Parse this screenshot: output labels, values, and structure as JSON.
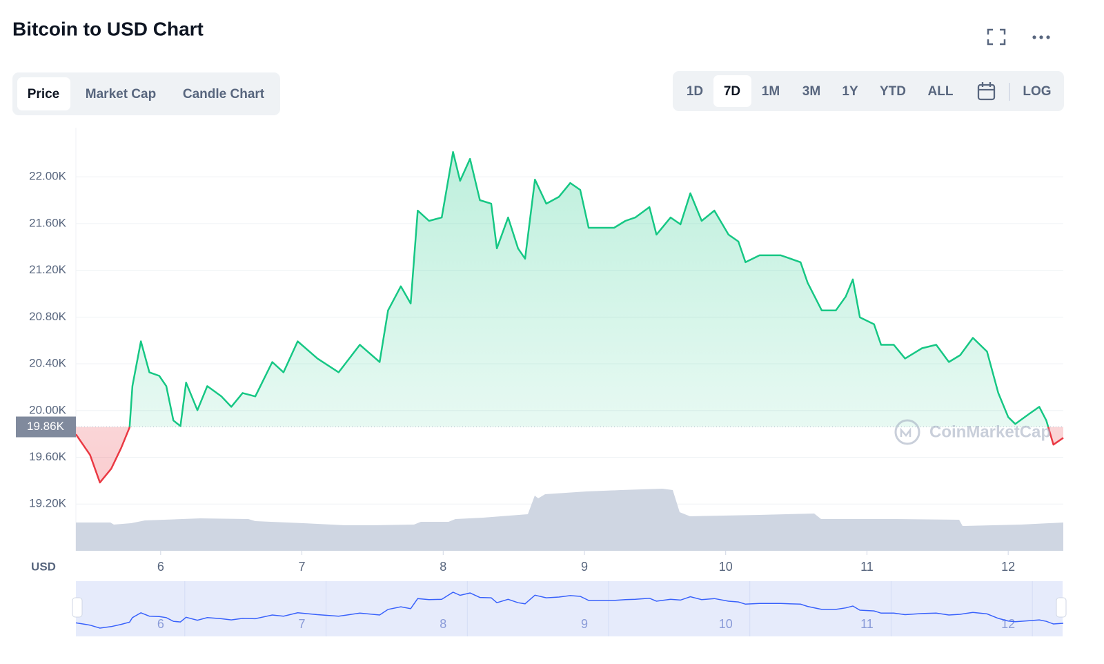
{
  "chart_data": {
    "type": "line",
    "title": "Bitcoin to USD Chart",
    "unit_label": "USD",
    "x": [
      5.4,
      5.5,
      5.57,
      5.65,
      5.72,
      5.78,
      5.8,
      5.86,
      5.92,
      5.99,
      6.04,
      6.09,
      6.14,
      6.18,
      6.26,
      6.33,
      6.43,
      6.5,
      6.58,
      6.67,
      6.79,
      6.87,
      6.97,
      7.11,
      7.26,
      7.41,
      7.55,
      7.61,
      7.7,
      7.77,
      7.82,
      7.9,
      7.99,
      8.07,
      8.12,
      8.19,
      8.26,
      8.34,
      8.38,
      8.46,
      8.53,
      8.58,
      8.65,
      8.73,
      8.82,
      8.9,
      8.97,
      9.03,
      9.12,
      9.21,
      9.29,
      9.36,
      9.46,
      9.51,
      9.61,
      9.68,
      9.75,
      9.83,
      9.92,
      10.02,
      10.09,
      10.14,
      10.24,
      10.39,
      10.53,
      10.58,
      10.68,
      10.78,
      10.85,
      10.9,
      10.95,
      11.05,
      11.1,
      11.19,
      11.27,
      11.39,
      11.49,
      11.58,
      11.66,
      11.75,
      11.85,
      11.93,
      12.0,
      12.05,
      12.15,
      12.22,
      12.27,
      12.32,
      12.39
    ],
    "series": [
      {
        "name": "Price",
        "color": "#16c784",
        "below_color": "#ea3943",
        "values": [
          19797,
          19620,
          19384,
          19502,
          19679,
          19856,
          20209,
          20592,
          20327,
          20297,
          20209,
          19915,
          19867,
          20239,
          20003,
          20209,
          20121,
          20032,
          20150,
          20121,
          20415,
          20327,
          20592,
          20445,
          20327,
          20563,
          20415,
          20857,
          21063,
          20916,
          21711,
          21623,
          21652,
          22212,
          21965,
          22153,
          21800,
          21770,
          21387,
          21652,
          21387,
          21299,
          21976,
          21770,
          21829,
          21947,
          21888,
          21564,
          21564,
          21564,
          21623,
          21652,
          21741,
          21505,
          21652,
          21593,
          21859,
          21623,
          21711,
          21505,
          21446,
          21269,
          21328,
          21328,
          21269,
          21093,
          20857,
          20857,
          20975,
          21122,
          20798,
          20739,
          20563,
          20563,
          20445,
          20533,
          20563,
          20415,
          20474,
          20622,
          20504,
          20150,
          19944,
          19885,
          19973,
          20032,
          19915,
          19708,
          19767
        ]
      }
    ],
    "reference": {
      "value": 19860,
      "label": "19.86K"
    },
    "xlim": [
      5.4,
      12.39
    ],
    "xticks": [
      6,
      7,
      8,
      9,
      10,
      11,
      12
    ],
    "ylim": [
      18800,
      22420
    ],
    "yticks": [
      {
        "value": 19200,
        "label": "19.20K"
      },
      {
        "value": 19600,
        "label": "19.60K"
      },
      {
        "value": 20000,
        "label": "20.00K"
      },
      {
        "value": 20400,
        "label": "20.40K"
      },
      {
        "value": 20800,
        "label": "20.80K"
      },
      {
        "value": 21200,
        "label": "21.20K"
      },
      {
        "value": 21600,
        "label": "21.60K"
      },
      {
        "value": 22000,
        "label": "22.00K"
      }
    ],
    "grid": true
  },
  "ui": {
    "tabs": [
      "Price",
      "Market Cap",
      "Candle Chart"
    ],
    "ranges": [
      "1D",
      "7D",
      "1M",
      "3M",
      "1Y",
      "YTD",
      "ALL"
    ],
    "log": "LOG",
    "watermark": "CoinMarketCap"
  }
}
